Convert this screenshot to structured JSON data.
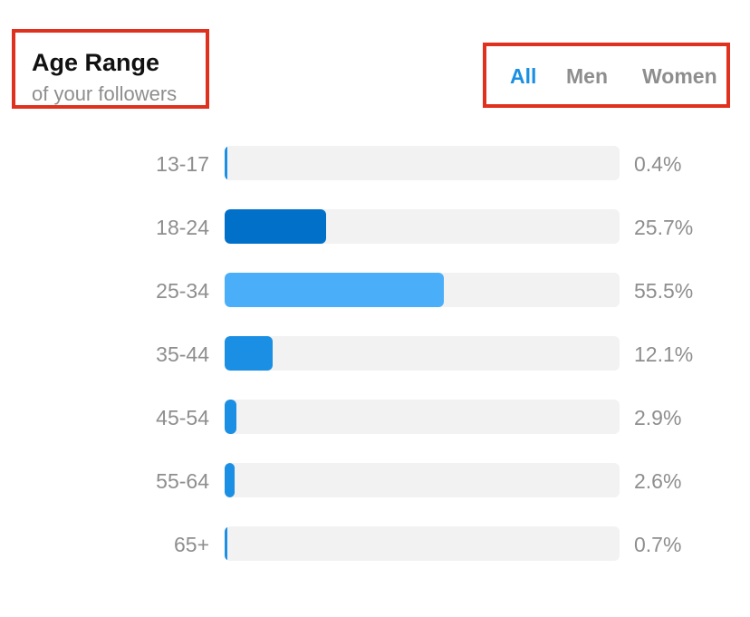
{
  "header": {
    "title": "Age Range",
    "subtitle": "of your followers"
  },
  "tabs": [
    {
      "label": "All",
      "active": true
    },
    {
      "label": "Men",
      "active": false
    },
    {
      "label": "Women",
      "active": false
    }
  ],
  "colors": {
    "highlight_border": "#e0301e",
    "active_tab": "#1a8fe3",
    "track": "#f2f2f2",
    "bar_dark": "#0070c9",
    "bar_light": "#4aaef9",
    "bar_default": "#1a8fe3"
  },
  "chart_data": {
    "type": "bar",
    "orientation": "horizontal",
    "title": "Age Range",
    "subtitle": "of your followers",
    "xlim": [
      0,
      100
    ],
    "categories": [
      "13-17",
      "18-24",
      "25-34",
      "35-44",
      "45-54",
      "55-64",
      "65+"
    ],
    "values": [
      0.4,
      25.7,
      55.5,
      12.1,
      2.9,
      2.6,
      0.7
    ],
    "value_labels": [
      "0.4%",
      "25.7%",
      "55.5%",
      "12.1%",
      "2.9%",
      "2.6%",
      "0.7%"
    ],
    "bar_colors": [
      "#1a8fe3",
      "#0070c9",
      "#4aaef9",
      "#1a8fe3",
      "#1a8fe3",
      "#1a8fe3",
      "#1a8fe3"
    ]
  }
}
